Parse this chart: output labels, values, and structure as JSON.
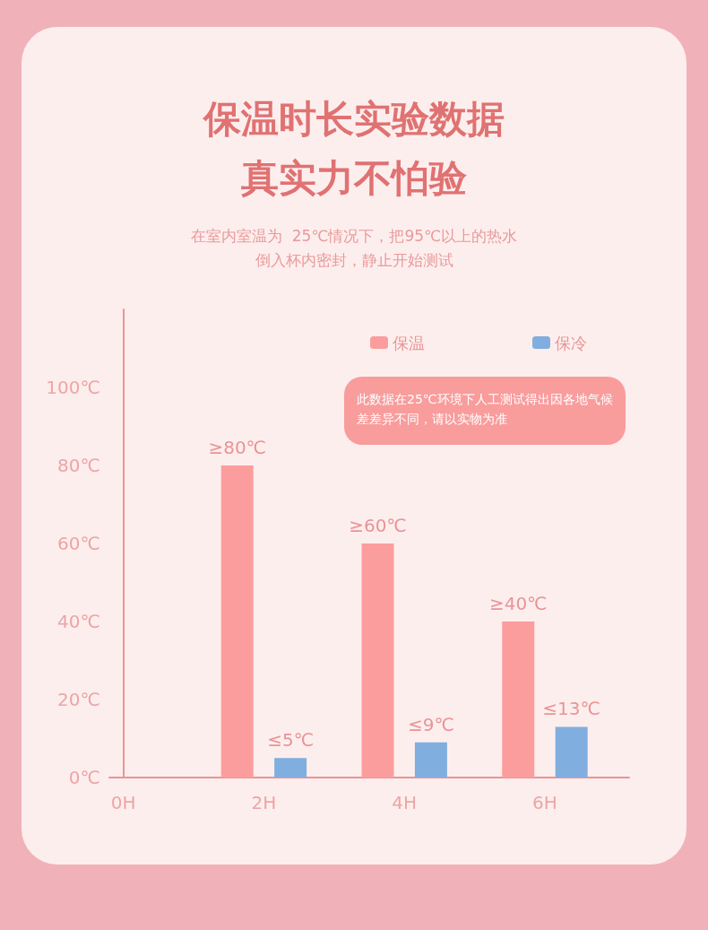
{
  "chart_data": {
    "type": "bar",
    "title": "保温时长实验数据真实力不怕验",
    "subtitle": "在室内室温为  25℃情况下，把95℃以上的热水倒入杯内密封，静止开始测试",
    "annotations": [
      "此数据在25℃环境下人工测试得出因各地气候差差异不同，请以实物为准"
    ],
    "x": [
      2,
      4,
      6
    ],
    "series": [
      {
        "name": "保温",
        "color": "#fc9d9d",
        "values": [
          80,
          60,
          40
        ],
        "value_labels": [
          "≥80℃",
          "≥60℃",
          "≥40℃"
        ]
      },
      {
        "name": "保冷",
        "color": "#80afdf",
        "values": [
          5,
          9,
          13
        ],
        "value_labels": [
          "≤5℃",
          "≤9℃",
          "≤13℃"
        ]
      }
    ],
    "xlim": [
      -0.2,
      7.2
    ],
    "xticks": [
      {
        "value": 0,
        "label": "0H"
      },
      {
        "value": 2,
        "label": "2H"
      },
      {
        "value": 4,
        "label": "4H"
      },
      {
        "value": 6,
        "label": "6H"
      }
    ],
    "ylim": [
      0,
      120
    ],
    "yticks": [
      {
        "value": 0,
        "label": "0℃"
      },
      {
        "value": 20,
        "label": "20℃"
      },
      {
        "value": 40,
        "label": "40℃"
      },
      {
        "value": 60,
        "label": "60℃"
      },
      {
        "value": 80,
        "label": "80℃"
      },
      {
        "value": 100,
        "label": "100℃"
      }
    ],
    "grid": false,
    "legend": "top right"
  }
}
